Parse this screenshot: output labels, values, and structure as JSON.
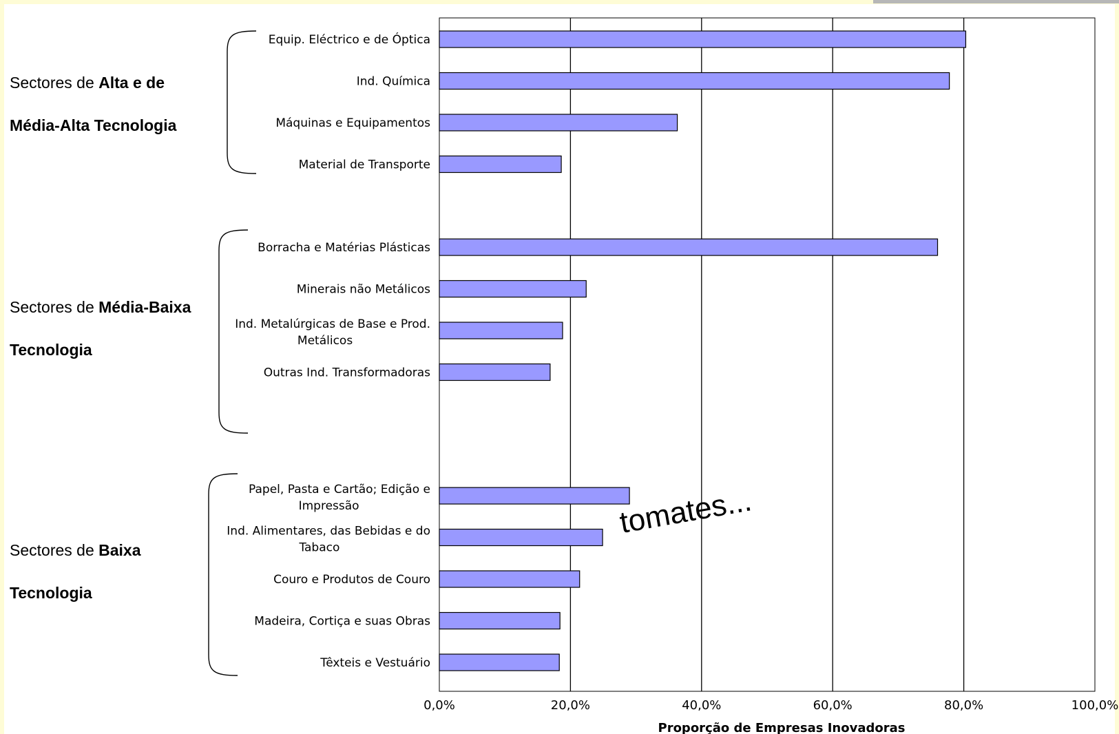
{
  "chart_data": {
    "type": "bar",
    "orientation": "horizontal",
    "xlabel": "Proporção de Empresas Inovadoras",
    "xlim": [
      0,
      100
    ],
    "x_ticks": [
      "0,0%",
      "20,0%",
      "40,0%",
      "60,0%",
      "80,0%",
      "100,0%"
    ],
    "grid": "vertical",
    "bar_color": "#9999ff",
    "groups": [
      {
        "label_prefix": "Sectores de ",
        "label_bold": "Alta e de",
        "label_line2": "Média-Alta Tecnologia",
        "categories": [
          {
            "name": "Equip. Eléctrico e de Óptica",
            "value": 80.3
          },
          {
            "name": "Ind. Química",
            "value": 77.8
          },
          {
            "name": "Máquinas e Equipamentos",
            "value": 36.3
          },
          {
            "name": "Material de Transporte",
            "value": 18.6
          }
        ]
      },
      {
        "label_prefix": "Sectores de ",
        "label_bold": "Média-Baixa",
        "label_line2": "Tecnologia",
        "categories": [
          {
            "name": "Borracha e Matérias Plásticas",
            "value": 76.0
          },
          {
            "name": "Minerais não Metálicos",
            "value": 22.4
          },
          {
            "name": "Ind. Metalúrgicas de Base e Prod. Metálicos",
            "value": 18.8
          },
          {
            "name": "Outras Ind. Transformadoras",
            "value": 16.9
          }
        ]
      },
      {
        "label_prefix": "Sectores de ",
        "label_bold": "Baixa",
        "label_line2": "Tecnologia",
        "categories": [
          {
            "name": "Papel, Pasta e Cartão; Edição e Impressão",
            "value": 29.0
          },
          {
            "name": "Ind. Alimentares, das Bebidas e do Tabaco",
            "value": 24.9
          },
          {
            "name": "Couro e Produtos de Couro",
            "value": 21.4
          },
          {
            "name": "Madeira, Cortiça e suas Obras",
            "value": 18.4
          },
          {
            "name": "Têxteis e Vestuário",
            "value": 18.3
          }
        ]
      }
    ],
    "annotation": "tomates..."
  }
}
